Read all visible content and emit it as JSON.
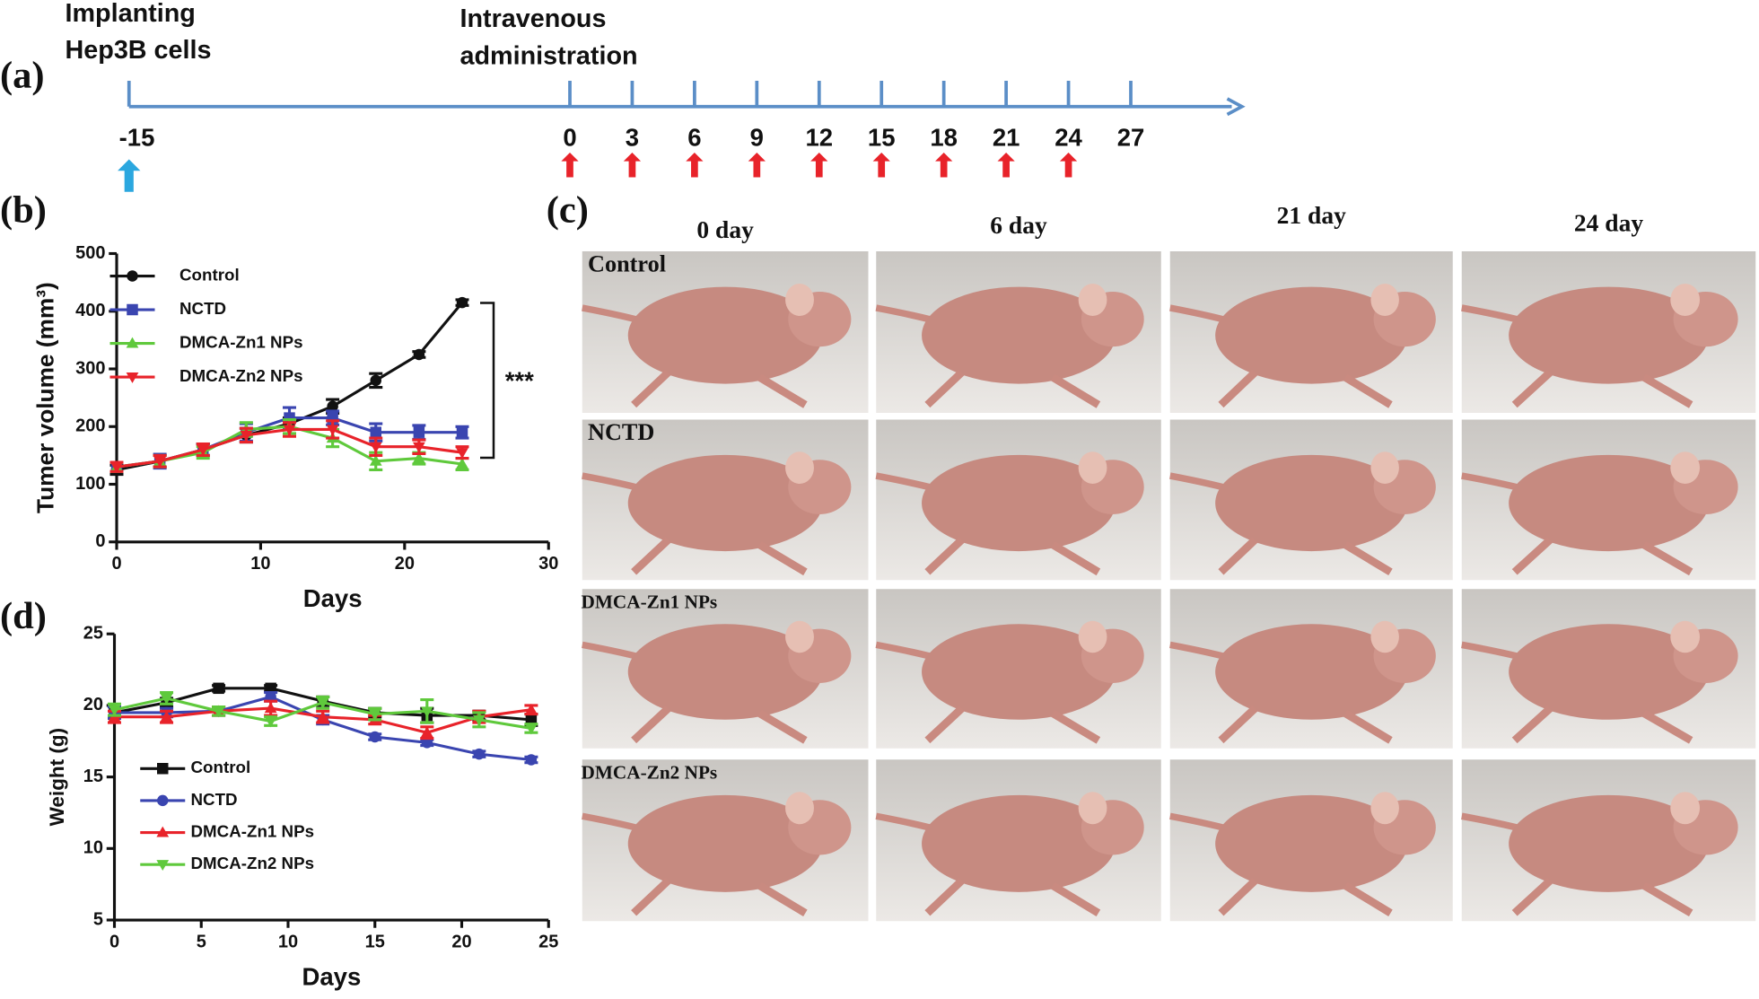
{
  "panel_labels": [
    "(a)",
    "(b)",
    "(c)",
    "(d)"
  ],
  "timeline": {
    "implant_label": [
      "Implanting",
      "Hep3B cells"
    ],
    "admin_label": [
      "Intravenous",
      "administration"
    ],
    "days": [
      -15,
      0,
      3,
      6,
      9,
      12,
      15,
      18,
      21,
      24,
      27
    ],
    "dose_days": [
      0,
      3,
      6,
      9,
      12,
      15,
      18,
      21,
      24
    ]
  },
  "photos": {
    "columns": [
      "0 day",
      "6 day",
      "21 day",
      "24 day"
    ],
    "rows": [
      "Control",
      "NCTD",
      "DMCA-Zn1 NPs",
      "DMCA-Zn2 NPs"
    ]
  },
  "chart_data": [
    {
      "type": "line",
      "xlabel": "Days",
      "ylabel": "Tumer volume (mm³)",
      "annotation": "***",
      "x": [
        0,
        3,
        6,
        9,
        12,
        15,
        18,
        21,
        24
      ],
      "xlim": [
        0,
        30
      ],
      "ylim": [
        0,
        500
      ],
      "xticks": [
        0,
        10,
        20,
        30
      ],
      "yticks": [
        0,
        100,
        200,
        300,
        400,
        500
      ],
      "series": [
        {
          "name": "Control",
          "color": "#111111",
          "marker": "circle",
          "values": [
            125,
            140,
            160,
            185,
            205,
            235,
            280,
            325,
            415
          ],
          "errors": [
            8,
            10,
            10,
            12,
            10,
            12,
            12,
            5,
            5
          ]
        },
        {
          "name": "NCTD",
          "color": "#3a45b0",
          "marker": "square",
          "values": [
            130,
            140,
            160,
            190,
            215,
            215,
            190,
            190,
            190
          ],
          "errors": [
            8,
            12,
            10,
            15,
            18,
            12,
            15,
            12,
            10
          ]
        },
        {
          "name": "DMCA-Zn1 NPs",
          "color": "#5fc93c",
          "marker": "triangle-up",
          "values": [
            130,
            140,
            155,
            195,
            200,
            180,
            140,
            145,
            135
          ],
          "errors": [
            8,
            10,
            10,
            12,
            12,
            15,
            15,
            10,
            10
          ]
        },
        {
          "name": "DMCA-Zn2 NPs",
          "color": "#e8232a",
          "marker": "triangle-down",
          "values": [
            130,
            140,
            160,
            185,
            195,
            195,
            165,
            165,
            155
          ],
          "errors": [
            8,
            10,
            10,
            12,
            12,
            15,
            15,
            12,
            10
          ]
        }
      ]
    },
    {
      "type": "line",
      "xlabel": "Days",
      "ylabel": "Weight (g)",
      "x": [
        0,
        3,
        6,
        9,
        12,
        15,
        18,
        21,
        24
      ],
      "xlim": [
        0,
        25
      ],
      "ylim": [
        5,
        25
      ],
      "xticks": [
        0,
        5,
        10,
        15,
        20,
        25
      ],
      "yticks": [
        5,
        10,
        15,
        20,
        25
      ],
      "series": [
        {
          "name": "Control",
          "color": "#111111",
          "marker": "square",
          "values": [
            19.5,
            20.2,
            21.2,
            21.2,
            20.3,
            19.5,
            19.3,
            19.3,
            19.0
          ],
          "errors": [
            0.4,
            0.3,
            0.2,
            0.2,
            0.3,
            0.3,
            0.5,
            0.3,
            0.4
          ]
        },
        {
          "name": "NCTD",
          "color": "#3a45b0",
          "marker": "circle",
          "values": [
            19.5,
            19.5,
            19.6,
            20.6,
            19.0,
            17.8,
            17.4,
            16.6,
            16.2
          ],
          "errors": [
            0.4,
            0.3,
            0.3,
            0.3,
            0.3,
            0.2,
            0.2,
            0.2,
            0.2
          ]
        },
        {
          "name": "DMCA-Zn1 NPs",
          "color": "#e8232a",
          "marker": "triangle-up",
          "values": [
            19.2,
            19.2,
            19.6,
            19.8,
            19.2,
            19.0,
            18.1,
            19.2,
            19.7
          ],
          "errors": [
            0.4,
            0.4,
            0.3,
            0.5,
            0.4,
            0.3,
            0.4,
            0.4,
            0.3
          ]
        },
        {
          "name": "DMCA-Zn2 NPs",
          "color": "#5fc93c",
          "marker": "triangle-down",
          "values": [
            19.7,
            20.5,
            19.6,
            18.9,
            20.2,
            19.4,
            19.6,
            19.0,
            18.4
          ],
          "errors": [
            0.4,
            0.4,
            0.3,
            0.3,
            0.4,
            0.4,
            0.8,
            0.5,
            0.3
          ]
        }
      ]
    }
  ]
}
